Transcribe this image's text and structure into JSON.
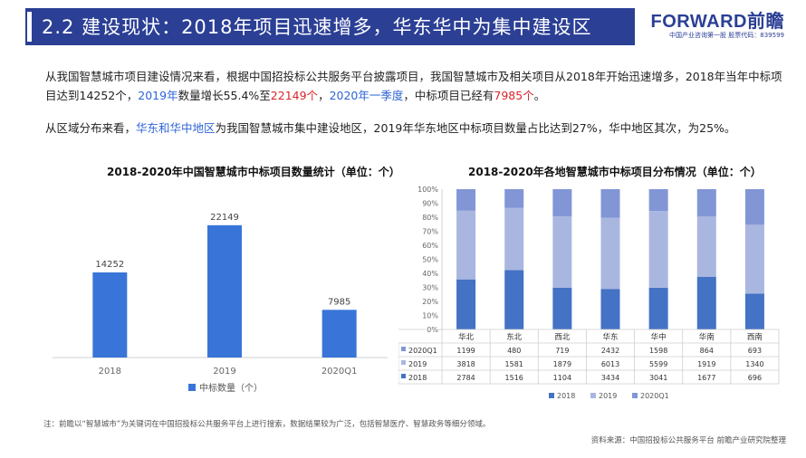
{
  "header": {
    "title": "2.2 建设现状：2018年项目迅速增多，华东华中为集中建设区",
    "logo_text": "FORWARD前瞻",
    "logo_sub": "中国产业咨询第一股  股票代码：839599",
    "bar_color": "#2b3f95"
  },
  "paragraph1": {
    "s1": "从我国智慧城市项目建设情况来看，根据中国招投标公共服务平台披露项目，我国智慧城市及相关项目从2018年开始迅速增多，2018年当年中标项目达到14252个，",
    "s2": "2019年",
    "s3": "数量增长55.4%至",
    "s4": "22149个",
    "s5": "，",
    "s6": "2020年一季度",
    "s7": "，中标项目已经有",
    "s8": "7985个",
    "s9": "。"
  },
  "paragraph2": {
    "s1": "从区域分布来看，",
    "s2": "华东和华中地区",
    "s3": "为我国智慧城市集中建设地区，2019年华东地区中标项目数量占比达到27%，华中地区其次，为25%。"
  },
  "colors": {
    "accent_blue": "#2e64d6",
    "accent_red": "#d9262c",
    "bar_blue": "#3975d8",
    "series_2018": "#4472c4",
    "series_2019": "#a9b7e0",
    "series_2020Q1": "#8296d6"
  },
  "chart_data": [
    {
      "type": "bar",
      "title": "2018-2020年中国智慧城市中标项目数量统计（单位：个）",
      "categories": [
        "2018",
        "2019",
        "2020Q1"
      ],
      "series": [
        {
          "name": "中标数量（个）",
          "values": [
            14252,
            22149,
            7985
          ]
        }
      ],
      "data_labels": [
        "14252",
        "22149",
        "7985"
      ],
      "ylim": [
        0,
        25000
      ],
      "grid": false,
      "legend": "bottom"
    },
    {
      "type": "bar",
      "stacked": "percent",
      "title": "2018-2020年各地智慧城市中标项目分布情况（单位：个）",
      "categories": [
        "华北",
        "东北",
        "西北",
        "华东",
        "华中",
        "华南",
        "西南"
      ],
      "series": [
        {
          "name": "2018",
          "values": [
            2784,
            1516,
            1104,
            3434,
            3041,
            1677,
            696
          ]
        },
        {
          "name": "2019",
          "values": [
            3818,
            1581,
            1879,
            6013,
            5599,
            1919,
            1340
          ]
        },
        {
          "name": "2020Q1",
          "values": [
            1199,
            480,
            719,
            2432,
            1598,
            864,
            693
          ]
        }
      ],
      "table_rows": [
        {
          "label": "2020Q1",
          "cells": [
            "1199",
            "480",
            "719",
            "2432",
            "1598",
            "864",
            "693"
          ]
        },
        {
          "label": "2019",
          "cells": [
            "3818",
            "1581",
            "1879",
            "6013",
            "5599",
            "1919",
            "1340"
          ]
        },
        {
          "label": "2018",
          "cells": [
            "2784",
            "1516",
            "1104",
            "3434",
            "3041",
            "1677",
            "696"
          ]
        }
      ],
      "y_ticks": [
        "0%",
        "10%",
        "20%",
        "30%",
        "40%",
        "50%",
        "60%",
        "70%",
        "80%",
        "90%",
        "100%"
      ],
      "ylim": [
        0,
        100
      ],
      "grid": false,
      "legend": "bottom"
    }
  ],
  "footer": {
    "note": "注：前瞻以“智慧城市”为关键词在中国招投标公共服务平台上进行搜索，数据结果较为广泛，包括智慧医疗、智慧政务等细分领域。",
    "source": "资料来源：中国招投标公共服务平台 前瞻产业研究院整理"
  }
}
